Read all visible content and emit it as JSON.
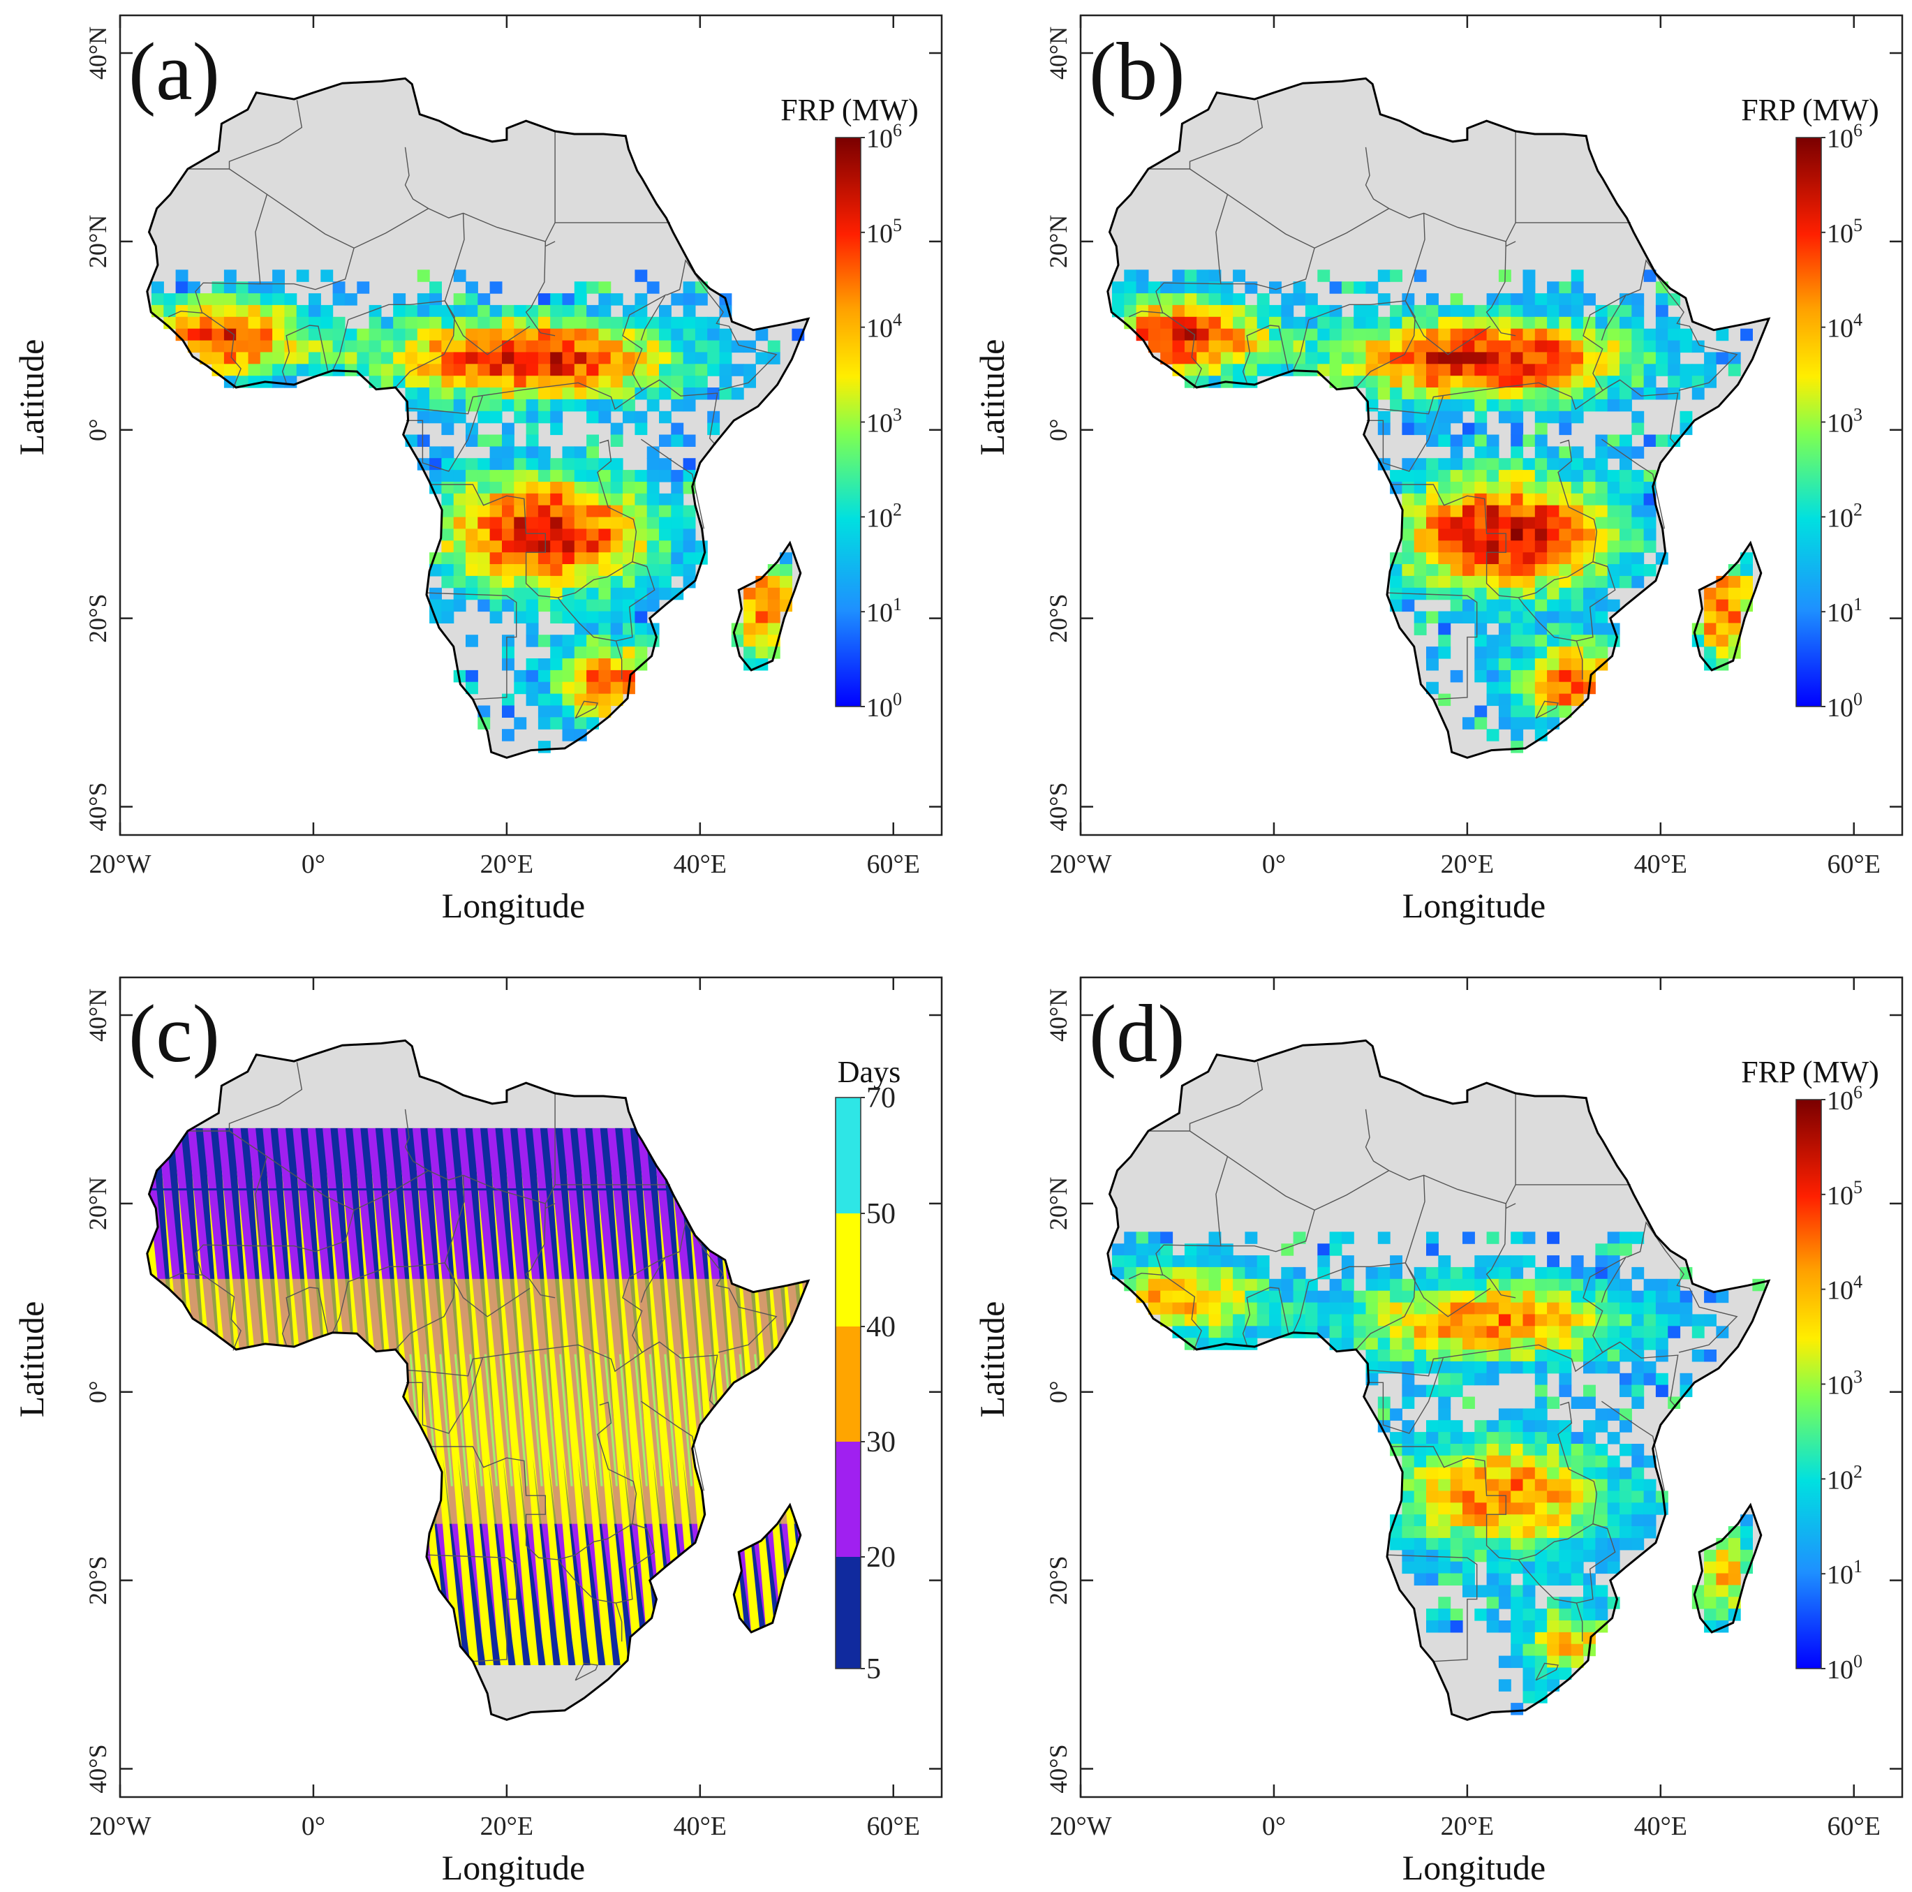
{
  "figure": {
    "x_axis_title": "Longitude",
    "y_axis_title": "Latitude",
    "x_ticks": [
      "20°W",
      "0°",
      "20°E",
      "40°E",
      "60°E"
    ],
    "y_ticks": [
      "40°N",
      "20°N",
      "0°",
      "20°S",
      "40°S"
    ],
    "frp_colorbar": {
      "title": "FRP (MW)",
      "levels": [
        {
          "base": "10",
          "exp": "6"
        },
        {
          "base": "10",
          "exp": "5"
        },
        {
          "base": "10",
          "exp": "4"
        },
        {
          "base": "10",
          "exp": "3"
        },
        {
          "base": "10",
          "exp": "2"
        },
        {
          "base": "10",
          "exp": "1"
        },
        {
          "base": "10",
          "exp": "0"
        }
      ]
    },
    "days_colorbar": {
      "title": "Days",
      "levels": [
        "70",
        "50",
        "40",
        "30",
        "20",
        "5"
      ],
      "colors": [
        "#2ee6e6",
        "#ffff00",
        "#ffa500",
        "#a020f0",
        "#102a9e"
      ]
    },
    "colors": {
      "land": "#dcdcdc",
      "coast": "#000000",
      "border": "#555555"
    }
  },
  "chart_data": [
    {
      "panel": "(a)",
      "type": "heatmap",
      "xlabel": "Longitude",
      "ylabel": "Latitude",
      "xlim": [
        -20,
        65
      ],
      "ylim": [
        -43,
        44
      ],
      "colorbar": "FRP (MW)",
      "scale": "log",
      "range": [
        1,
        1000000
      ]
    },
    {
      "panel": "(b)",
      "type": "heatmap",
      "xlabel": "Longitude",
      "ylabel": "Latitude",
      "xlim": [
        -20,
        65
      ],
      "ylim": [
        -43,
        44
      ],
      "colorbar": "FRP (MW)",
      "scale": "log",
      "range": [
        1,
        1000000
      ]
    },
    {
      "panel": "(c)",
      "type": "heatmap",
      "xlabel": "Longitude",
      "ylabel": "Latitude",
      "xlim": [
        -20,
        65
      ],
      "ylim": [
        -43,
        44
      ],
      "colorbar": "Days",
      "bins": [
        5,
        20,
        30,
        40,
        50,
        70
      ]
    },
    {
      "panel": "(d)",
      "type": "heatmap",
      "xlabel": "Longitude",
      "ylabel": "Latitude",
      "xlim": [
        -20,
        65
      ],
      "ylim": [
        -43,
        44
      ],
      "colorbar": "FRP (MW)",
      "scale": "log",
      "range": [
        1,
        1000000
      ]
    }
  ]
}
